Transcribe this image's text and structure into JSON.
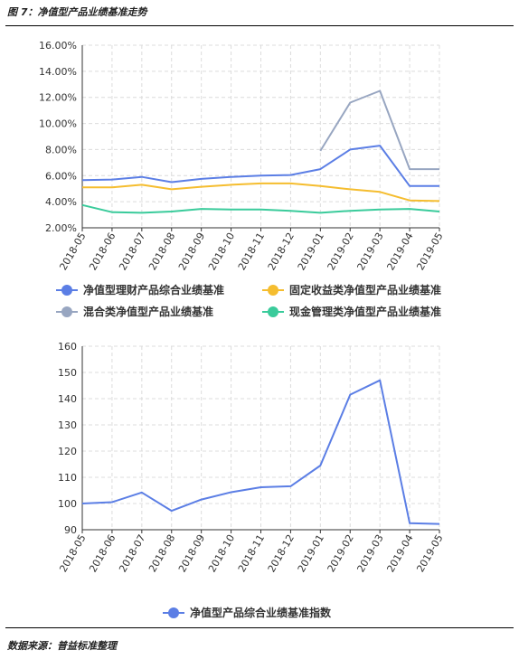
{
  "header": {
    "figure_title": "图 7：净值型产品业绩基准走势"
  },
  "footer": {
    "source": "数据来源：普益标准整理"
  },
  "chart_data": [
    {
      "type": "line",
      "categories": [
        "2018-05",
        "2018-06",
        "2018-07",
        "2018-08",
        "2018-09",
        "2018-10",
        "2018-11",
        "2018-12",
        "2019-01",
        "2019-02",
        "2019-03",
        "2019-04",
        "2019-05"
      ],
      "ylim": [
        0.02,
        0.16
      ],
      "yticks": [
        "2.00%",
        "4.00%",
        "6.00%",
        "8.00%",
        "10.00%",
        "12.00%",
        "14.00%",
        "16.00%"
      ],
      "grid": true,
      "legend": "bottom",
      "series": [
        {
          "name": "净值型理财产品综合业绩基准",
          "color": "#5b7ee5",
          "values": [
            0.0565,
            0.057,
            0.059,
            0.055,
            0.0575,
            0.059,
            0.06,
            0.0605,
            0.065,
            0.08,
            0.083,
            0.052,
            0.052
          ]
        },
        {
          "name": "固定收益类净值型产品业绩基准",
          "color": "#f5bd2f",
          "values": [
            0.051,
            0.051,
            0.053,
            0.0495,
            0.0515,
            0.053,
            0.054,
            0.054,
            0.052,
            0.0495,
            0.0475,
            0.041,
            0.0405
          ]
        },
        {
          "name": "混合类净值型产品业绩基准",
          "color": "#98a6c1",
          "values": [
            null,
            null,
            null,
            null,
            null,
            null,
            null,
            null,
            0.079,
            0.116,
            0.125,
            0.065,
            0.065
          ]
        },
        {
          "name": "现金管理类净值型产品业绩基准",
          "color": "#3acb9b",
          "values": [
            0.0375,
            0.032,
            0.0315,
            0.0325,
            0.0345,
            0.034,
            0.034,
            0.033,
            0.0315,
            0.033,
            0.034,
            0.0345,
            0.0325
          ]
        }
      ]
    },
    {
      "type": "line",
      "categories": [
        "2018-05",
        "2018-06",
        "2018-07",
        "2018-08",
        "2018-09",
        "2018-10",
        "2018-11",
        "2018-12",
        "2019-01",
        "2019-02",
        "2019-03",
        "2019-04",
        "2019-05"
      ],
      "ylim": [
        90,
        160
      ],
      "yticks": [
        "90",
        "100",
        "110",
        "120",
        "130",
        "140",
        "150",
        "160"
      ],
      "grid": true,
      "legend": "bottom",
      "series": [
        {
          "name": "净值型产品综合业绩基准指数",
          "color": "#5b7ee5",
          "values": [
            100.0,
            100.5,
            104.2,
            97.2,
            101.5,
            104.3,
            106.2,
            106.6,
            114.5,
            141.5,
            147.0,
            92.5,
            92.2
          ]
        }
      ]
    }
  ]
}
